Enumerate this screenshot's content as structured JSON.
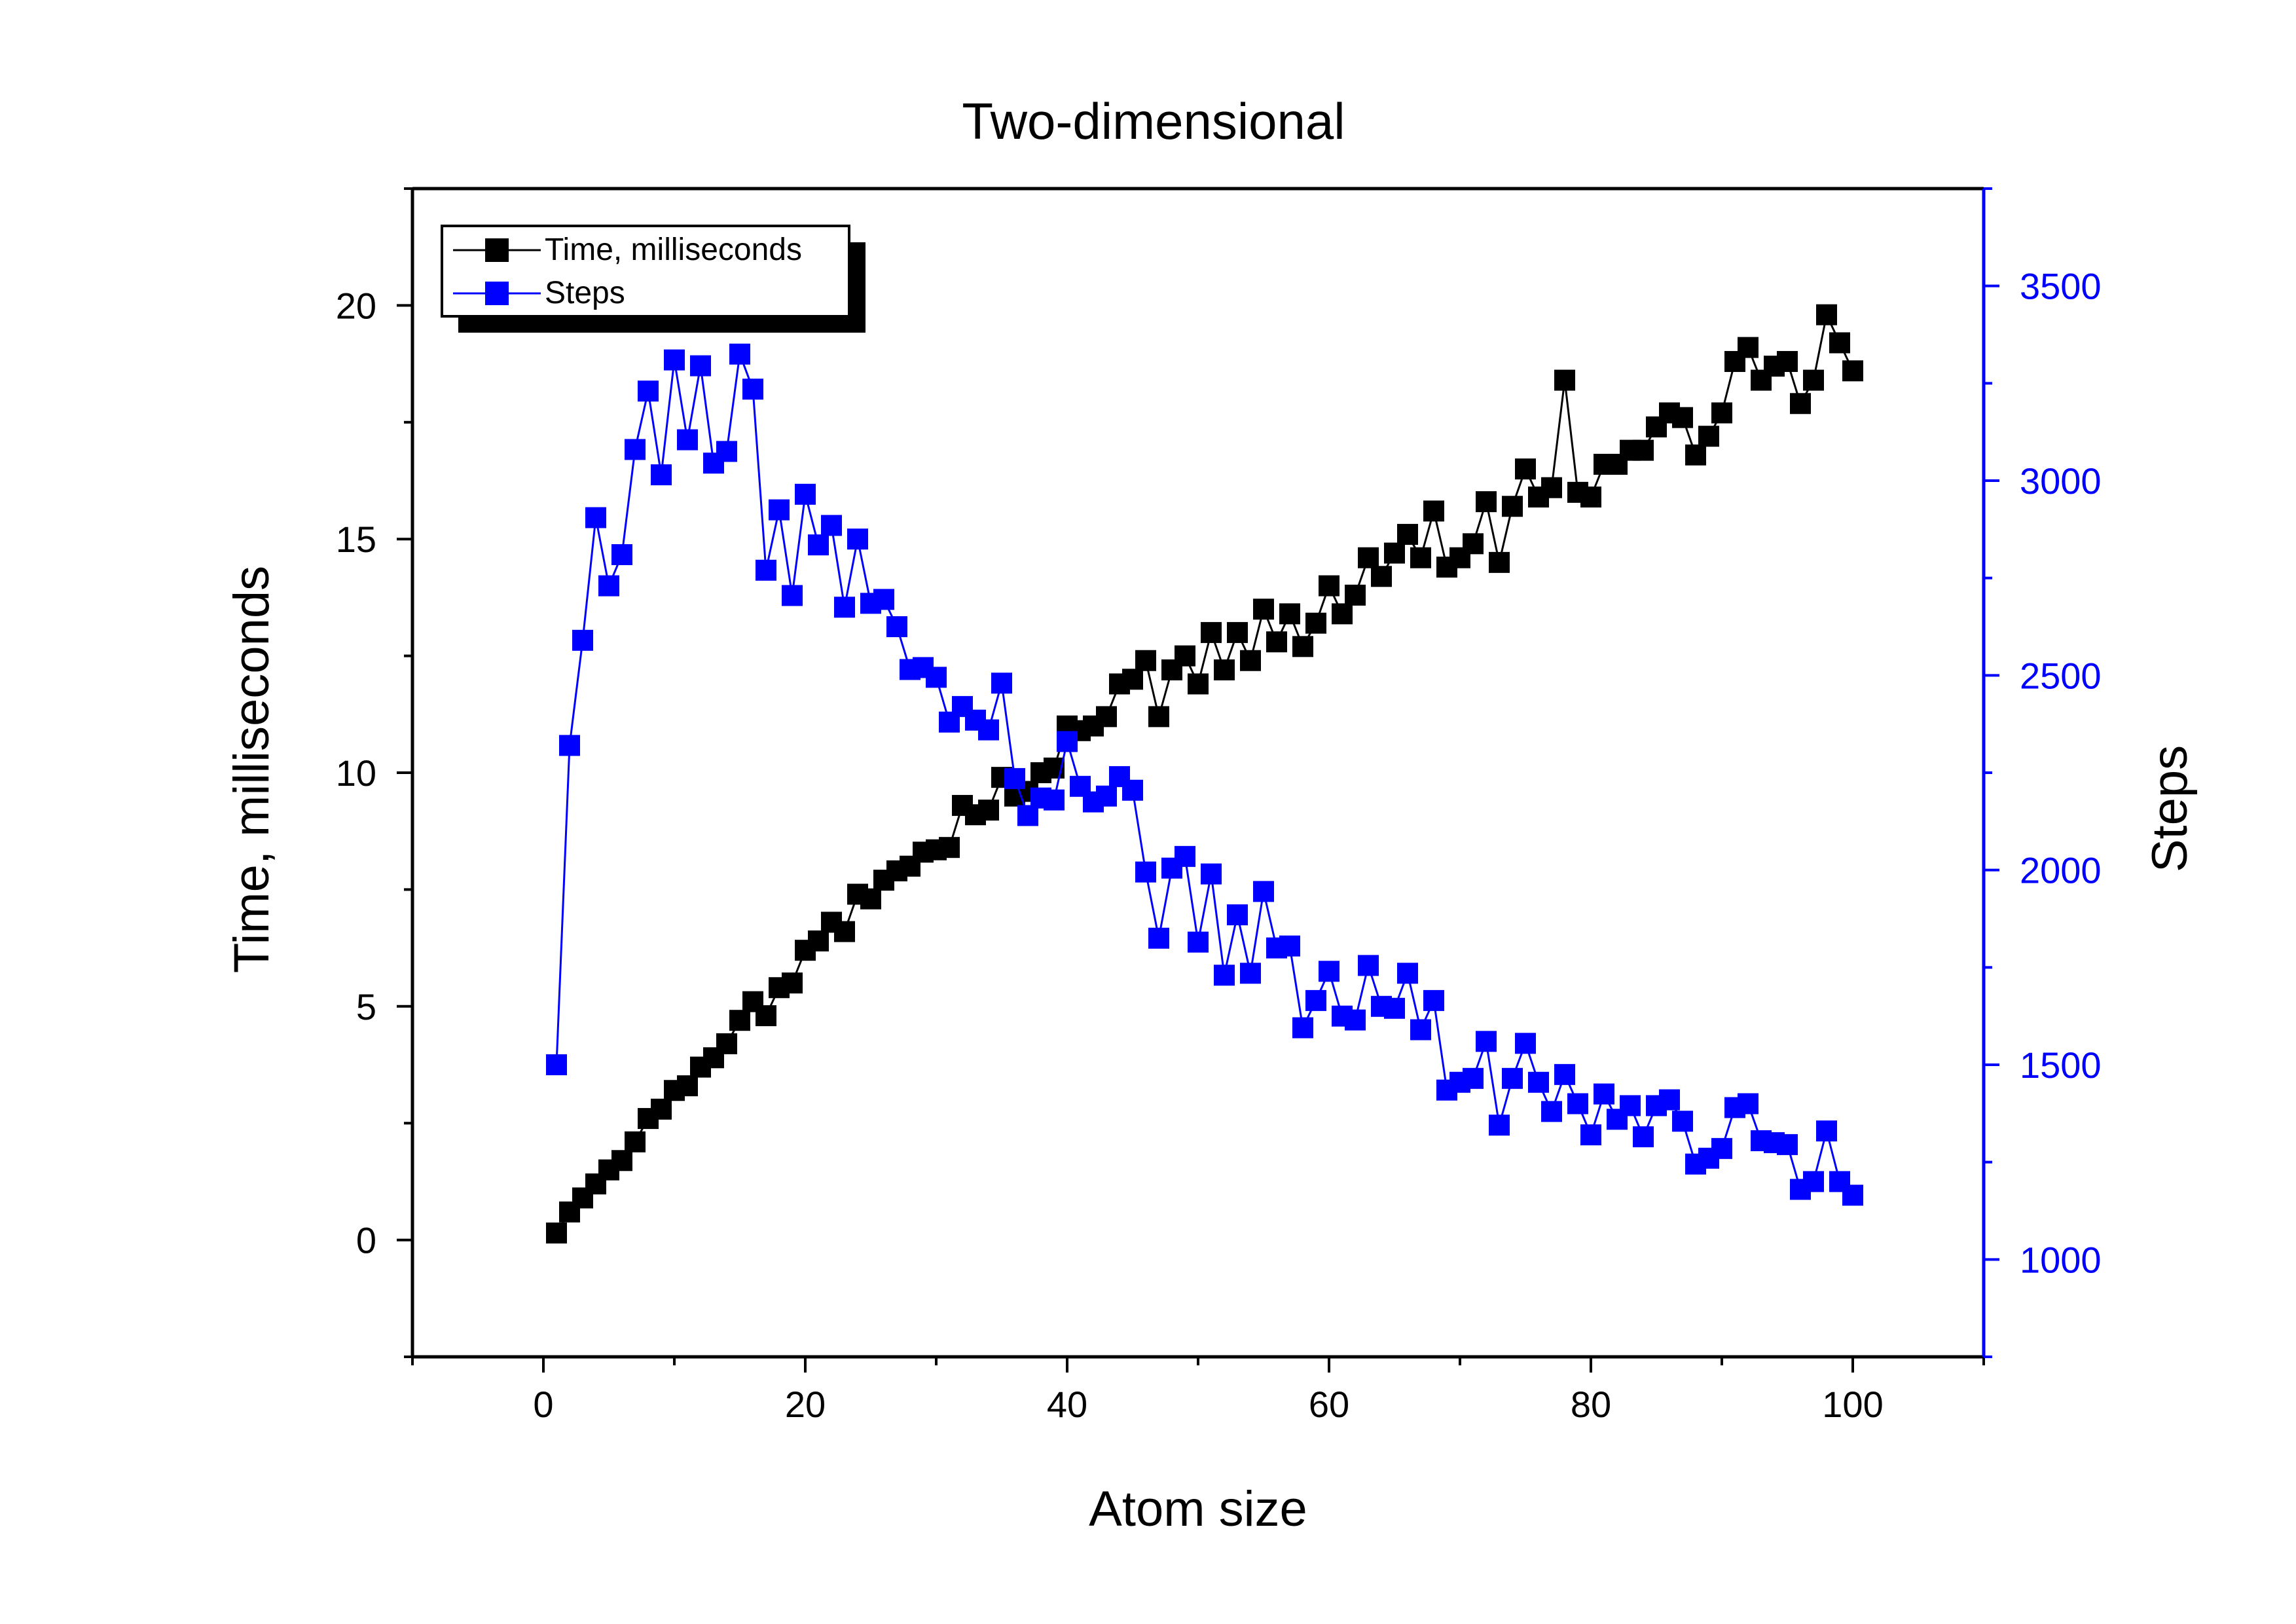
{
  "chart_data": {
    "type": "line",
    "title": "Two-dimensional",
    "xlabel": "Atom size",
    "ylabel_left": "Time, milliseconds",
    "ylabel_right": "Steps",
    "xlim": [
      -10,
      110
    ],
    "ylim_left": [
      -2.5,
      22.5
    ],
    "ylim_right": [
      750,
      3750
    ],
    "x_ticks": [
      0,
      20,
      40,
      60,
      80,
      100
    ],
    "y_left_ticks": [
      0,
      5,
      10,
      15,
      20
    ],
    "y_right_ticks": [
      1000,
      1500,
      2000,
      2500,
      3000,
      3500
    ],
    "legend_position": "top-left",
    "grid": false,
    "series": [
      {
        "name": "Time, milliseconds",
        "axis": "left",
        "color": "#000000",
        "x": [
          1,
          2,
          3,
          4,
          5,
          6,
          7,
          8,
          9,
          10,
          11,
          12,
          13,
          14,
          15,
          16,
          17,
          18,
          19,
          20,
          21,
          22,
          23,
          24,
          25,
          26,
          27,
          28,
          29,
          30,
          31,
          32,
          33,
          34,
          35,
          36,
          37,
          38,
          39,
          40,
          41,
          42,
          43,
          44,
          45,
          46,
          47,
          48,
          49,
          50,
          51,
          52,
          53,
          54,
          55,
          56,
          57,
          58,
          59,
          60,
          61,
          62,
          63,
          64,
          65,
          66,
          67,
          68,
          69,
          70,
          71,
          72,
          73,
          74,
          75,
          76,
          77,
          78,
          79,
          80,
          81,
          82,
          83,
          84,
          85,
          86,
          87,
          88,
          89,
          90,
          91,
          92,
          93,
          94,
          95,
          96,
          97,
          98,
          99,
          100
        ],
        "y": [
          0.15,
          0.6,
          0.9,
          1.2,
          1.5,
          1.7,
          2.1,
          2.6,
          2.8,
          3.2,
          3.3,
          3.7,
          3.9,
          4.2,
          4.7,
          5.1,
          4.8,
          5.4,
          5.5,
          6.2,
          6.4,
          6.8,
          6.6,
          7.4,
          7.3,
          7.7,
          7.9,
          8.0,
          8.3,
          8.35,
          8.4,
          9.3,
          9.1,
          9.2,
          9.9,
          9.5,
          9.6,
          10.0,
          10.1,
          11.0,
          10.9,
          11.0,
          11.2,
          11.9,
          12.0,
          12.4,
          11.2,
          12.2,
          12.5,
          11.9,
          13.0,
          12.2,
          13.0,
          12.4,
          13.5,
          12.8,
          13.4,
          12.7,
          13.2,
          14.0,
          13.4,
          13.8,
          14.6,
          14.2,
          14.7,
          15.1,
          14.6,
          15.6,
          14.4,
          14.6,
          14.9,
          15.8,
          14.5,
          15.7,
          16.5,
          15.9,
          16.1,
          18.4,
          16.0,
          15.9,
          16.6,
          16.6,
          16.9,
          16.9,
          17.4,
          17.7,
          17.6,
          16.8,
          17.2,
          17.7,
          18.8,
          19.1,
          18.4,
          18.7,
          18.8,
          17.9,
          18.4,
          19.8,
          19.2,
          18.6
        ]
      },
      {
        "name": "Steps",
        "axis": "right",
        "color": "#0000ff",
        "x": [
          1,
          2,
          3,
          4,
          5,
          6,
          7,
          8,
          9,
          10,
          11,
          12,
          13,
          14,
          15,
          16,
          17,
          18,
          19,
          20,
          21,
          22,
          23,
          24,
          25,
          26,
          27,
          28,
          29,
          30,
          31,
          32,
          33,
          34,
          35,
          36,
          37,
          38,
          39,
          40,
          41,
          42,
          43,
          44,
          45,
          46,
          47,
          48,
          49,
          50,
          51,
          52,
          53,
          54,
          55,
          56,
          57,
          58,
          59,
          60,
          61,
          62,
          63,
          64,
          65,
          66,
          67,
          68,
          69,
          70,
          71,
          72,
          73,
          74,
          75,
          76,
          77,
          78,
          79,
          80,
          81,
          82,
          83,
          84,
          85,
          86,
          87,
          88,
          89,
          90,
          91,
          92,
          93,
          94,
          95,
          96,
          97,
          98,
          99,
          100
        ],
        "y": [
          1500,
          2320,
          2590,
          2905,
          2730,
          2810,
          3080,
          3230,
          3015,
          3310,
          3105,
          3295,
          3045,
          3075,
          3325,
          3235,
          2770,
          2925,
          2705,
          2965,
          2835,
          2885,
          2675,
          2850,
          2685,
          2695,
          2625,
          2515,
          2520,
          2495,
          2380,
          2420,
          2385,
          2360,
          2480,
          2235,
          2140,
          2185,
          2180,
          2330,
          2215,
          2175,
          2190,
          2240,
          2205,
          1995,
          1825,
          2005,
          2035,
          1815,
          1990,
          1730,
          1885,
          1735,
          1945,
          1800,
          1805,
          1595,
          1665,
          1740,
          1625,
          1615,
          1755,
          1650,
          1645,
          1735,
          1590,
          1665,
          1435,
          1455,
          1465,
          1560,
          1345,
          1465,
          1555,
          1455,
          1380,
          1475,
          1400,
          1320,
          1425,
          1360,
          1395,
          1315,
          1395,
          1410,
          1355,
          1245,
          1260,
          1285,
          1390,
          1400,
          1305,
          1300,
          1295,
          1180,
          1200,
          1330,
          1200,
          1165
        ]
      }
    ]
  },
  "colors": {
    "axis_left": "#000000",
    "axis_right": "#0000ff",
    "series_time": "#000000",
    "series_steps": "#0000ff"
  }
}
